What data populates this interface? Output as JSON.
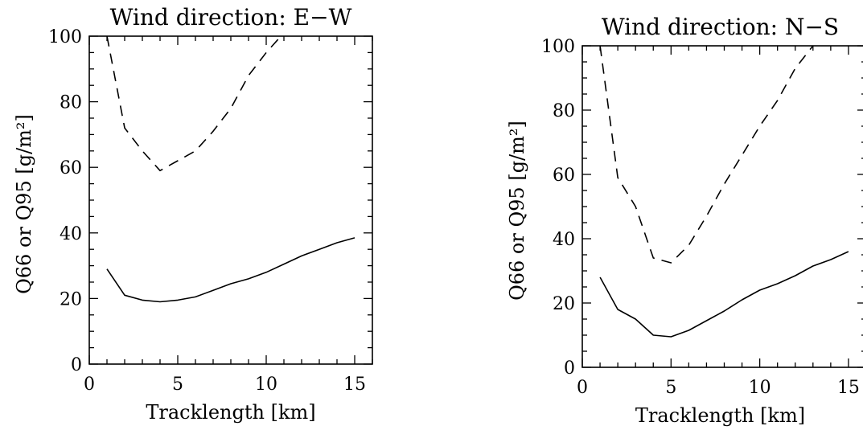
{
  "chart_data": [
    {
      "type": "line",
      "title": "Wind direction: E−W",
      "xlabel": "Tracklength [km]",
      "ylabel": "Q66 or Q95 [g/m²]",
      "xlim": [
        0,
        16
      ],
      "ylim": [
        0,
        100
      ],
      "xticks": [
        "0",
        "5",
        "10",
        "15"
      ],
      "yticks": [
        "0",
        "20",
        "40",
        "60",
        "80",
        "100"
      ],
      "grid": false,
      "series": [
        {
          "style": "dashed",
          "x": [
            1,
            2,
            3,
            4,
            5,
            6,
            7,
            8,
            9,
            10,
            11
          ],
          "y": [
            100,
            72,
            65,
            59,
            62,
            65,
            71,
            78,
            88,
            95,
            101
          ]
        },
        {
          "style": "solid",
          "x": [
            1,
            2,
            3,
            4,
            5,
            6,
            7,
            8,
            9,
            10,
            11,
            12,
            13,
            14,
            15
          ],
          "y": [
            29,
            21,
            19.5,
            19,
            19.5,
            20.5,
            22.5,
            24.5,
            26,
            28,
            30.5,
            33,
            35,
            37,
            38.5
          ]
        }
      ]
    },
    {
      "type": "line",
      "title": "Wind direction: N−S",
      "xlabel": "Tracklength [km]",
      "ylabel": "Q66 or Q95 [g/m²]",
      "xlim": [
        0,
        16
      ],
      "ylim": [
        0,
        100
      ],
      "xticks": [
        "0",
        "5",
        "10",
        "15"
      ],
      "yticks": [
        "0",
        "20",
        "40",
        "60",
        "80",
        "100"
      ],
      "grid": false,
      "series": [
        {
          "style": "dashed",
          "x": [
            1,
            2,
            3,
            4,
            5,
            6,
            7,
            8,
            9,
            10,
            11,
            12,
            13
          ],
          "y": [
            100,
            59,
            50,
            34,
            32.5,
            38,
            47,
            57,
            66,
            75,
            83,
            93,
            100
          ]
        },
        {
          "style": "solid",
          "x": [
            1,
            2,
            3,
            4,
            5,
            6,
            7,
            8,
            9,
            10,
            11,
            12,
            13,
            14,
            15
          ],
          "y": [
            28,
            18,
            15,
            10,
            9.5,
            11.5,
            14.5,
            17.5,
            21,
            24,
            26,
            28.5,
            31.5,
            33.5,
            36
          ]
        }
      ]
    }
  ]
}
